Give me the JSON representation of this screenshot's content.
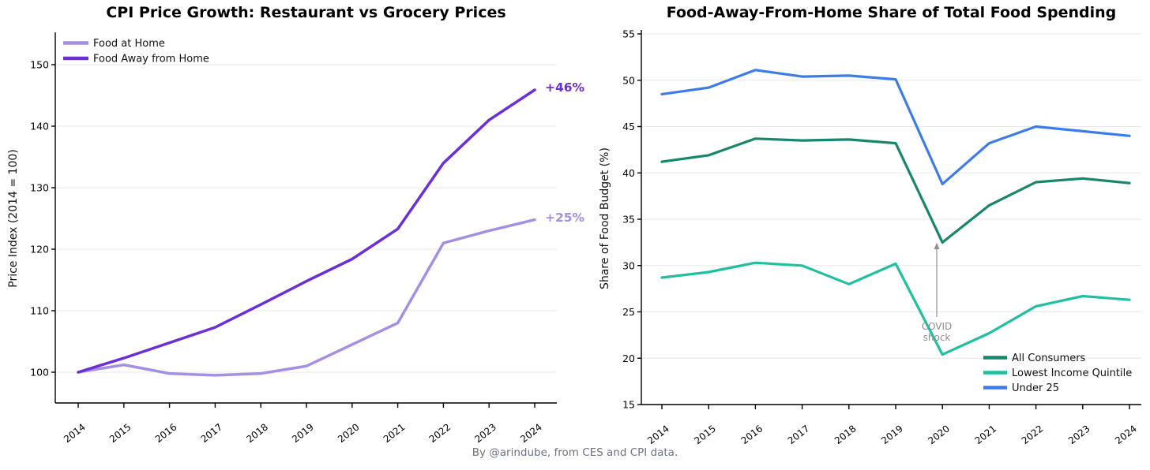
{
  "figure": {
    "footer_credit": "By @arindube, from CES and CPI data."
  },
  "chart_data": [
    {
      "type": "line",
      "title": "CPI Price Growth: Restaurant vs Grocery Prices",
      "xlabel": "",
      "ylabel": "Price Index (2014 = 100)",
      "x": [
        "2014",
        "2015",
        "2016",
        "2017",
        "2018",
        "2019",
        "2020",
        "2021",
        "2022",
        "2023",
        "2024"
      ],
      "yticks": [
        100,
        110,
        120,
        130,
        140,
        150
      ],
      "ylim": [
        95,
        155
      ],
      "grid": true,
      "legend_position": "upper-left",
      "series": [
        {
          "name": "Food at Home",
          "color": "#a58fe3",
          "values": [
            100,
            101.2,
            99.8,
            99.5,
            99.8,
            101,
            104.5,
            108,
            121,
            123,
            124.8
          ]
        },
        {
          "name": "Food Away from Home",
          "color": "#6b2fd5",
          "values": [
            100,
            102.3,
            104.8,
            107.3,
            111,
            114.8,
            118.4,
            123.3,
            134,
            141,
            145.9
          ]
        }
      ],
      "annotations": [
        {
          "text": "+46%",
          "color": "#6b2fd5"
        },
        {
          "text": "+25%",
          "color": "#a58fe3"
        }
      ]
    },
    {
      "type": "line",
      "title": "Food-Away-From-Home Share of Total Food Spending",
      "xlabel": "",
      "ylabel": "Share of Food Budget (%)",
      "x": [
        "2014",
        "2015",
        "2016",
        "2017",
        "2018",
        "2019",
        "2020",
        "2021",
        "2022",
        "2023",
        "2024"
      ],
      "yticks": [
        15,
        20,
        25,
        30,
        35,
        40,
        45,
        50,
        55
      ],
      "ylim": [
        15,
        55.4
      ],
      "grid": true,
      "legend_position": "lower-right",
      "series": [
        {
          "name": "All Consumers",
          "color": "#17866d",
          "values": [
            41.2,
            41.9,
            43.7,
            43.5,
            43.6,
            43.2,
            32.5,
            36.5,
            39,
            39.4,
            38.9
          ]
        },
        {
          "name": "Lowest Income Quintile",
          "color": "#1fbf9f",
          "values": [
            28.7,
            29.3,
            30.3,
            30,
            28,
            30.2,
            20.4,
            22.7,
            25.6,
            26.7,
            26.3
          ]
        },
        {
          "name": "Under 25",
          "color": "#3d7ce8",
          "values": [
            48.5,
            49.2,
            51.1,
            50.4,
            50.5,
            50.1,
            38.8,
            43.2,
            45,
            44.5,
            44
          ]
        }
      ],
      "annotations": [
        {
          "text": "COVID\nshock",
          "color": "#8e8e8e"
        }
      ]
    }
  ]
}
